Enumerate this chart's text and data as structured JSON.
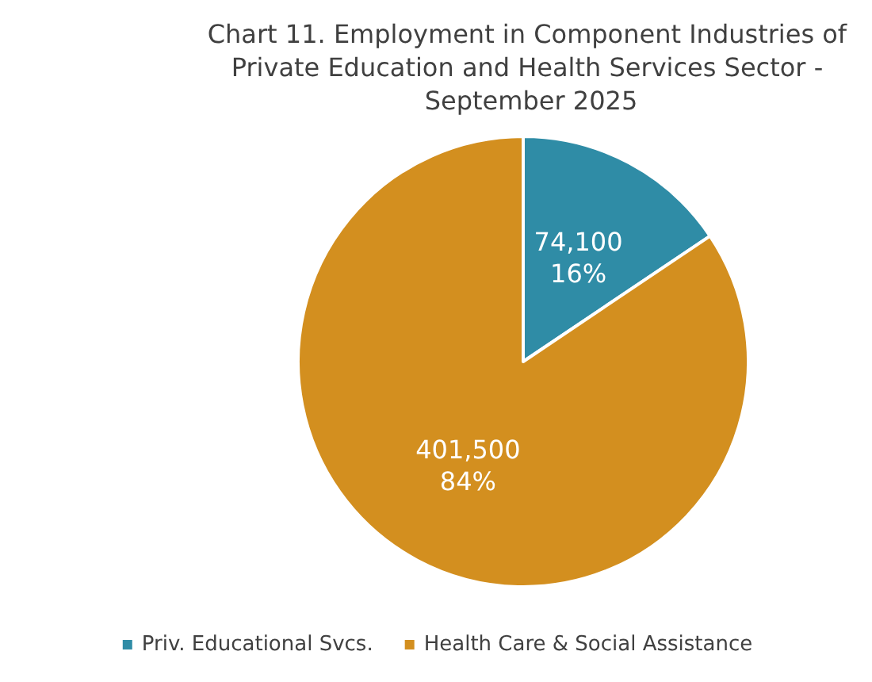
{
  "chart_data": {
    "type": "pie",
    "title": "Chart 11. Employment in Component Industries of Private Education and Health Services Sector - September 2025",
    "categories": [
      "Priv. Educational Svcs.",
      "Health Care & Social Assistance"
    ],
    "values": [
      74100,
      401500
    ],
    "colors": [
      "#2f8ca6",
      "#d38f1f"
    ],
    "value_labels": [
      "74,100\n16%",
      "401,500\n84%"
    ],
    "legend": "bottom"
  }
}
